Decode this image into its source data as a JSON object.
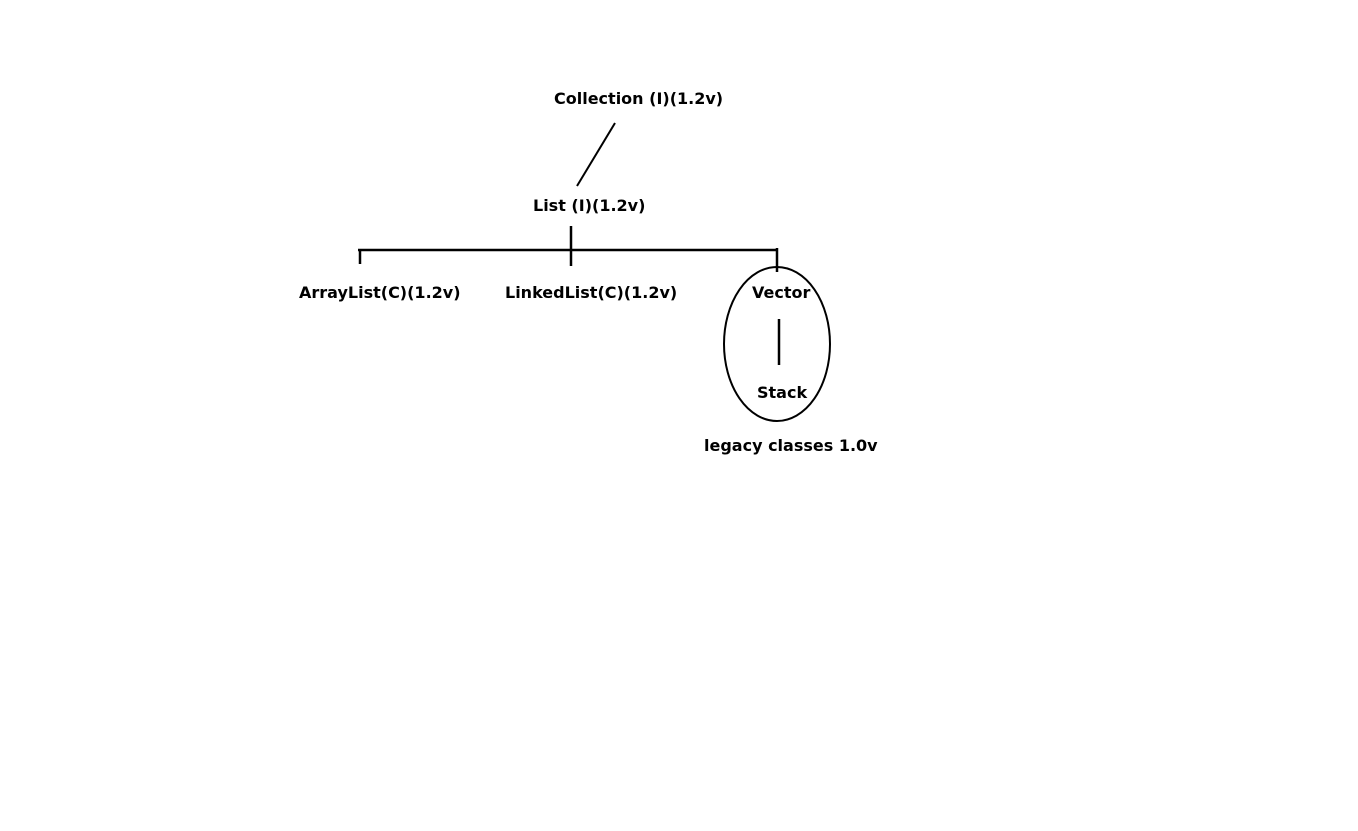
{
  "diagram": {
    "nodes": {
      "collection": "Collection (I)(1.2v)",
      "list": "List (I)(1.2v)",
      "arraylist": "ArrayList(C)(1.2v)",
      "linkedlist": "LinkedList(C)(1.2v)",
      "vector": "Vector",
      "stack": "Stack"
    },
    "legacy_caption": "legacy classes 1.0v"
  }
}
